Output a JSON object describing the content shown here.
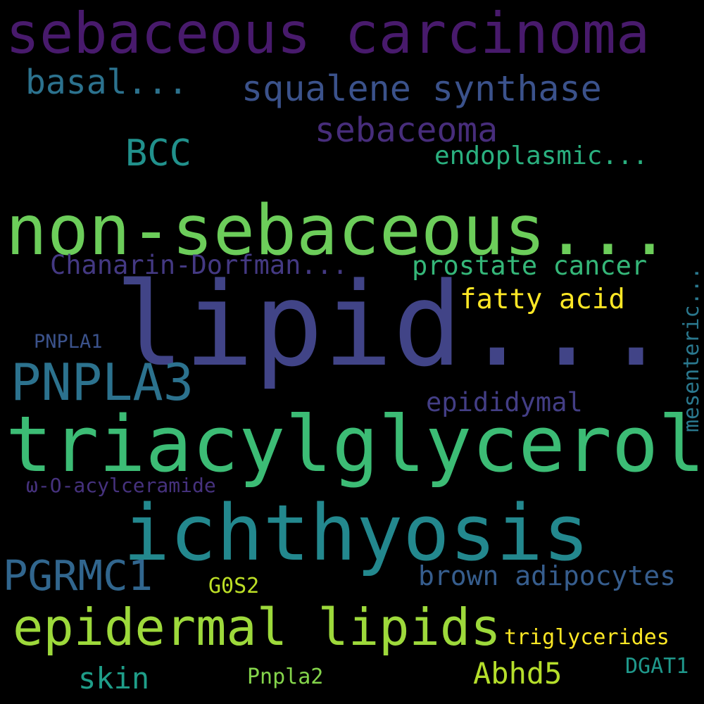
{
  "words": [
    {
      "id": "word-sebaceous-carcinoma",
      "text": "sebaceous carcinoma",
      "color": "#481a6c"
    },
    {
      "id": "word-basal",
      "text": "basal...",
      "color": "#2c728e"
    },
    {
      "id": "word-squalene-synthase",
      "text": "squalene synthase",
      "color": "#3b528b"
    },
    {
      "id": "word-sebaceoma",
      "text": "sebaceoma",
      "color": "#472d7b"
    },
    {
      "id": "word-bcc",
      "text": "BCC",
      "color": "#21918c"
    },
    {
      "id": "word-endoplasmic",
      "text": "endoplasmic...",
      "color": "#2ab07f"
    },
    {
      "id": "word-non-sebaceous",
      "text": "non-sebaceous...",
      "color": "#6ccd5a"
    },
    {
      "id": "word-chanarin-dorfman",
      "text": "Chanarin-Dorfman...",
      "color": "#443983"
    },
    {
      "id": "word-prostate-cancer",
      "text": "prostate cancer",
      "color": "#35b779"
    },
    {
      "id": "word-lipid",
      "text": "lipid...",
      "color": "#414487"
    },
    {
      "id": "word-fatty-acid",
      "text": "fatty acid",
      "color": "#fde725"
    },
    {
      "id": "word-mesenteric",
      "text": "mesenteric...",
      "color": "#2a788e"
    },
    {
      "id": "word-pnpla1",
      "text": "PNPLA1",
      "color": "#3b528b"
    },
    {
      "id": "word-pnpla3",
      "text": "PNPLA3",
      "color": "#2c728e"
    },
    {
      "id": "word-epididymal",
      "text": "epididymal",
      "color": "#433e85"
    },
    {
      "id": "word-triacylglycerol",
      "text": "triacylglycerol",
      "color": "#3cbc75"
    },
    {
      "id": "word-omega-o-acylceramide",
      "text": "ω-O-acylceramide",
      "color": "#46327e"
    },
    {
      "id": "word-ichthyosis",
      "text": "ichthyosis",
      "color": "#23888e"
    },
    {
      "id": "word-pgrmc1",
      "text": "PGRMC1",
      "color": "#31668e"
    },
    {
      "id": "word-brown-adipocytes",
      "text": "brown adipocytes",
      "color": "#365d8d"
    },
    {
      "id": "word-g0s2",
      "text": "G0S2",
      "color": "#bddf26"
    },
    {
      "id": "word-epidermal-lipids",
      "text": "epidermal lipids",
      "color": "#9dd93b"
    },
    {
      "id": "word-triglycerides",
      "text": "triglycerides",
      "color": "#fde725"
    },
    {
      "id": "word-abhd5",
      "text": "Abhd5",
      "color": "#b5de2b"
    },
    {
      "id": "word-skin",
      "text": "skin",
      "color": "#1f9e89"
    },
    {
      "id": "word-pnpla2",
      "text": "Pnpla2",
      "color": "#84d44b"
    },
    {
      "id": "word-dgat1",
      "text": "DGAT1",
      "color": "#1f988b"
    }
  ]
}
